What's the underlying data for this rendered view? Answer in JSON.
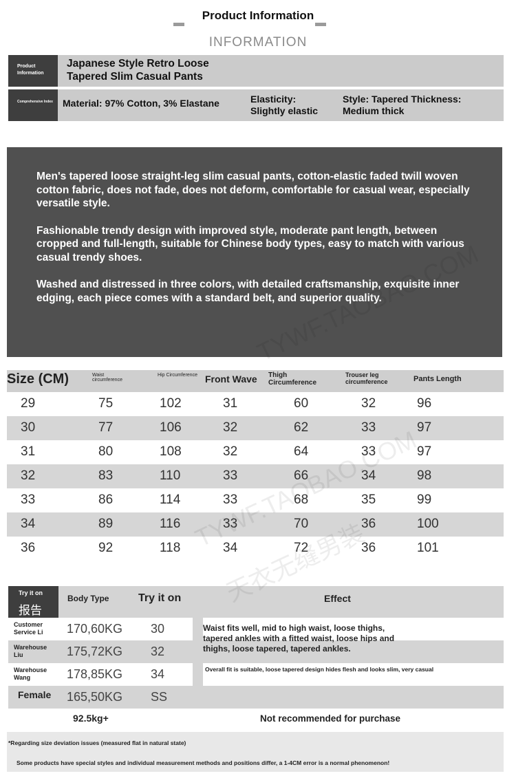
{
  "header": {
    "title": "Product Information",
    "subtitle": "INFORMATION"
  },
  "info": {
    "row1_label": "Product Information",
    "product_name": "Japanese Style Retro Loose Tapered Slim Casual Pants",
    "row2_label": "Comprehensive Index",
    "material": "Material: 97% Cotton, 3% Elastane",
    "elasticity_label": "Elasticity:",
    "elasticity_value": "Slightly elastic",
    "style_label": "Style: Tapered Thickness:",
    "style_value": "Medium thick"
  },
  "description": [
    "Men's tapered loose straight-leg slim casual pants, cotton-elastic faded twill woven cotton fabric, does not fade, does not deform, comfortable for casual wear, especially versatile style.",
    "Fashionable trendy design with improved style, moderate pant length, between cropped and full-length, suitable for Chinese body types, easy to match with various casual trendy shoes.",
    "Washed and distressed in three colors, with detailed craftsmanship, exquisite inner edging, each piece comes with a standard belt, and superior quality."
  ],
  "size_table": {
    "headers": [
      "Size (CM)",
      "Waist circumference",
      "Hip Circumference",
      "Front Wave",
      "Thigh Circumference",
      "Trouser leg circumference",
      "Pants Length"
    ],
    "rows": [
      [
        "29",
        "75",
        "102",
        "31",
        "60",
        "32",
        "96"
      ],
      [
        "30",
        "77",
        "106",
        "32",
        "62",
        "33",
        "97"
      ],
      [
        "31",
        "80",
        "108",
        "32",
        "64",
        "33",
        "97"
      ],
      [
        "32",
        "83",
        "110",
        "33",
        "66",
        "34",
        "98"
      ],
      [
        "33",
        "86",
        "114",
        "33",
        "68",
        "35",
        "99"
      ],
      [
        "34",
        "89",
        "116",
        "33",
        "70",
        "36",
        "100"
      ],
      [
        "36",
        "92",
        "118",
        "34",
        "72",
        "36",
        "101"
      ]
    ]
  },
  "tryon": {
    "label_en": "Try it on",
    "label_cn": "报告",
    "col_body": "Body Type",
    "col_size": "Try it on",
    "col_effect": "Effect",
    "rows": [
      {
        "name": "Customer Service Li",
        "body": "170,60KG",
        "size": "30"
      },
      {
        "name": "Warehouse Liu",
        "body": "175,72KG",
        "size": "32"
      },
      {
        "name": "Warehouse Wang",
        "body": "178,85KG",
        "size": "34"
      },
      {
        "name": "Female",
        "body": "165,50KG",
        "size": "SS"
      }
    ],
    "effect1": "Waist fits well, mid to high waist, loose thighs, tapered ankles with a fitted waist, loose hips and thighs, loose tapered, tapered ankles.",
    "effect2": "Overall fit is suitable, loose tapered design hides flesh and looks slim, very casual",
    "over_weight": "92.5kg+",
    "not_recommended": "Not recommended for purchase"
  },
  "note": {
    "title": "*Regarding size deviation issues (measured flat in natural state)",
    "body": "Some products have special styles and individual measurement methods and positions differ, a 1-4CM error is a normal phenomenon!"
  },
  "watermark": {
    "url": "TYWF.TAOBAO.COM",
    "cn": "天衣无缝男装"
  }
}
